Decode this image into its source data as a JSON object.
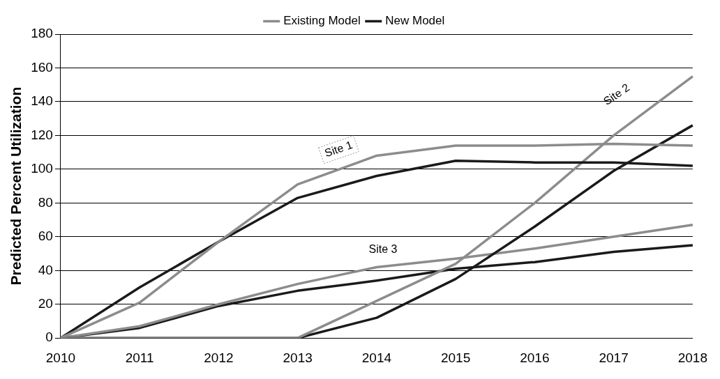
{
  "chart_data": {
    "type": "line",
    "ylabel": "Predicted Percent Utilization",
    "categories": [
      "2010",
      "2011",
      "2012",
      "2013",
      "2014",
      "2015",
      "2016",
      "2017",
      "2018"
    ],
    "ylim": [
      0,
      180
    ],
    "yticks": [
      0,
      20,
      40,
      60,
      80,
      100,
      120,
      140,
      160,
      180
    ],
    "grid": "y",
    "legend": "top",
    "marker": "none",
    "line_style": "solid",
    "series": [
      {
        "name": "Existing Model",
        "color": "#8c8c8c",
        "values": [
          0,
          21,
          57,
          91,
          108,
          114,
          114,
          115,
          114
        ]
      },
      {
        "name": "New Model",
        "color": "#1a1a1a",
        "values": [
          0,
          30,
          57,
          83,
          96,
          105,
          104,
          104,
          102
        ]
      },
      {
        "color": "#8c8c8c",
        "values": [
          0,
          0,
          0,
          0,
          22,
          44,
          80,
          120,
          155
        ]
      },
      {
        "color": "#1a1a1a",
        "values": [
          0,
          0,
          0,
          0,
          12,
          35,
          66,
          99,
          126
        ]
      },
      {
        "color": "#8c8c8c",
        "values": [
          0,
          7,
          20,
          32,
          42,
          47,
          53,
          60,
          67
        ]
      },
      {
        "color": "#1a1a1a",
        "values": [
          0,
          6,
          19,
          28,
          34,
          41,
          45,
          51,
          55
        ]
      }
    ],
    "annotations": [
      "Site 1",
      "Site 2",
      "Site 3"
    ]
  }
}
